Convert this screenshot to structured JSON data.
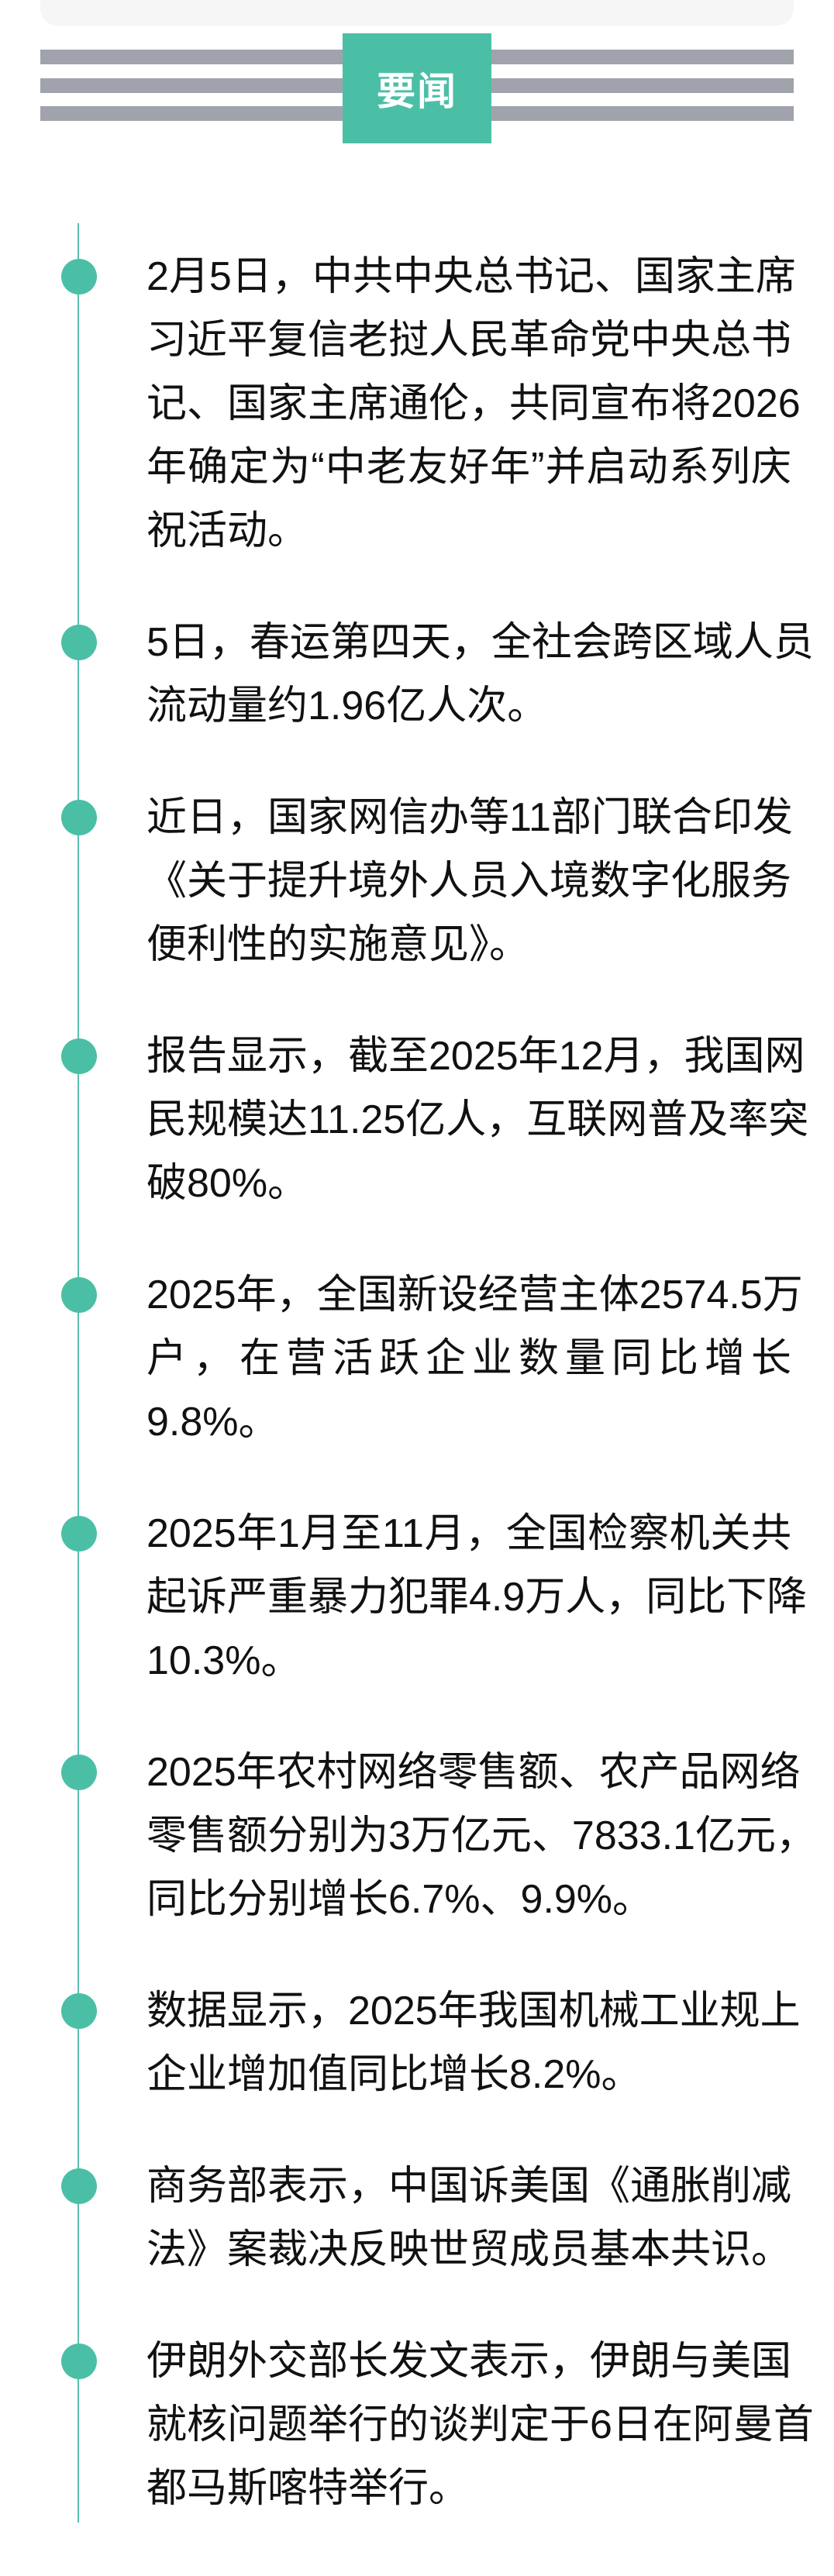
{
  "header": {
    "title": "要闻"
  },
  "colors": {
    "accent": "#4bbfa6",
    "stripe": "#a0a3ab",
    "line": "#5bbfae"
  },
  "items": [
    {
      "lines": [
        "2月5日，中共中央总书记、国家主席",
        "习近平复信老挝人民革命党中央总书",
        "记、国家主席通伦，共同宣布将2026",
        "年确定为“中老友好年”并启动系列庆",
        "祝活动。"
      ]
    },
    {
      "lines": [
        "5日，春运第四天，全社会跨区域人员",
        "流动量约1.96亿人次。"
      ]
    },
    {
      "lines": [
        "近日，国家网信办等11部门联合印发",
        "《关于提升境外人员入境数字化服务",
        "便利性的实施意见》。"
      ]
    },
    {
      "lines": [
        "报告显示，截至2025年12月，我国网",
        "民规模达11.25亿人，互联网普及率突",
        "破80%。"
      ]
    },
    {
      "lines": [
        "2025年，全国新设经营主体2574.5万",
        "户，在营活跃企业数量同比增长",
        "9.8%。"
      ]
    },
    {
      "lines": [
        "2025年1月至11月，全国检察机关共",
        "起诉严重暴力犯罪4.9万人，同比下降",
        "10.3%。"
      ]
    },
    {
      "lines": [
        "2025年农村网络零售额、农产品网络",
        "零售额分别为3万亿元、7833.1亿元，",
        "同比分别增长6.7%、9.9%。"
      ]
    },
    {
      "lines": [
        "数据显示，2025年我国机械工业规上",
        "企业增加值同比增长8.2%。"
      ]
    },
    {
      "lines": [
        "商务部表示，中国诉美国《通胀削减",
        "法》案裁决反映世贸成员基本共识。"
      ]
    },
    {
      "lines": [
        "伊朗外交部长发文表示，伊朗与美国",
        "就核问题举行的谈判定于6日在阿曼首",
        "都马斯喀特举行。"
      ]
    }
  ]
}
